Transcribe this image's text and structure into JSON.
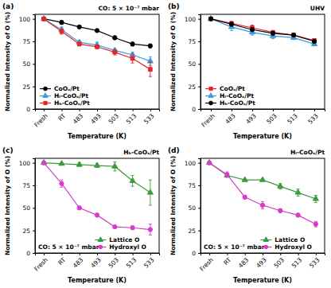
{
  "chart_data": [
    {
      "type": "line",
      "title": "(a)",
      "annotations": [
        "CO: 5 × 10⁻⁷ mbar"
      ],
      "x_label": "Temperature (K)",
      "y_label": "Normalized Intensity of O (%)",
      "categories": [
        "Fresh",
        "RT",
        "483",
        "493",
        "503",
        "513",
        "533"
      ],
      "ylim": [
        0,
        105
      ],
      "yticks": [
        0,
        25,
        50,
        75,
        100
      ],
      "legend": "lower left",
      "series": [
        {
          "name": "CoOₓ/Pt",
          "color": "#000000",
          "marker": "circle",
          "values": [
            100,
            96,
            91,
            87,
            79,
            72,
            70
          ],
          "errors": [
            0,
            2,
            1,
            1,
            2,
            2,
            2
          ]
        },
        {
          "name": "Hₗ-CoOₓ/Pt",
          "color": "#3d9ad9",
          "marker": "triangle",
          "values": [
            100,
            88,
            74,
            71,
            65,
            60,
            53
          ],
          "errors": [
            0,
            3,
            2,
            3,
            2,
            3,
            5
          ]
        },
        {
          "name": "Hₕ-CoOₓ/Pt",
          "color": "#e3262b",
          "marker": "square",
          "values": [
            100,
            86,
            72,
            69,
            63,
            56,
            44
          ],
          "errors": [
            0,
            3,
            2,
            2,
            3,
            5,
            8
          ]
        }
      ]
    },
    {
      "type": "line",
      "title": "(b)",
      "annotations": [
        "UHV"
      ],
      "x_label": "Temperature (K)",
      "y_label": "Normalized Intensity of O (%)",
      "categories": [
        "Fresh",
        "483",
        "493",
        "503",
        "513",
        "533"
      ],
      "ylim": [
        0,
        105
      ],
      "yticks": [
        0,
        25,
        50,
        75,
        100
      ],
      "legend": "lower left",
      "series": [
        {
          "name": "CoOₓ/Pt",
          "color": "#e3262b",
          "marker": "square",
          "values": [
            100,
            95,
            90,
            85,
            82,
            76
          ],
          "errors": [
            0,
            2,
            3,
            2,
            2,
            2
          ]
        },
        {
          "name": "Hₗ-CoOₓ/Pt",
          "color": "#3d9ad9",
          "marker": "triangle",
          "values": [
            100,
            91,
            85,
            81,
            79,
            72
          ],
          "errors": [
            0,
            4,
            3,
            3,
            2,
            2
          ]
        },
        {
          "name": "Hₕ-CoOₓ/Pt",
          "color": "#000000",
          "marker": "circle",
          "values": [
            100,
            94,
            88,
            84,
            82,
            75
          ],
          "errors": [
            0,
            2,
            2,
            2,
            2,
            2
          ]
        }
      ]
    },
    {
      "type": "line",
      "title": "(c)",
      "annotations": [
        "Hₕ-CoOₓ/Pt",
        "CO: 5 × 10⁻⁷ mbar"
      ],
      "x_label": "Temperature (K)",
      "y_label": "Normalized Intensity of O (%)",
      "categories": [
        "Fresh",
        "RT",
        "483",
        "493",
        "503",
        "513",
        "533"
      ],
      "ylim": [
        0,
        105
      ],
      "yticks": [
        0,
        25,
        50,
        75,
        100
      ],
      "legend": "lower right",
      "series": [
        {
          "name": "Lattice O",
          "color": "#3c9b3c",
          "marker": "triangle",
          "values": [
            100,
            99,
            98,
            97,
            96,
            80,
            67
          ],
          "errors": [
            0,
            1,
            2,
            2,
            5,
            6,
            14
          ]
        },
        {
          "name": "Hydroxyl O",
          "color": "#d63cc8",
          "marker": "circle",
          "values": [
            100,
            77,
            50,
            42,
            29,
            28,
            26
          ],
          "errors": [
            0,
            4,
            2,
            2,
            1,
            2,
            6
          ]
        }
      ]
    },
    {
      "type": "line",
      "title": "(d)",
      "annotations": [
        "Hₗ-CoOₓ/Pt",
        "CO: 5 × 10⁻⁷ mbar"
      ],
      "x_label": "Temperature (K)",
      "y_label": "Normalized Intensity of O (%)",
      "categories": [
        "Fresh",
        "RT",
        "483",
        "493",
        "503",
        "513",
        "533"
      ],
      "ylim": [
        0,
        105
      ],
      "yticks": [
        0,
        25,
        50,
        75,
        100
      ],
      "legend": "lower right",
      "series": [
        {
          "name": "Lattice O",
          "color": "#3c9b3c",
          "marker": "triangle",
          "values": [
            100,
            86,
            81,
            81,
            74,
            67,
            60
          ],
          "errors": [
            0,
            2,
            1,
            1,
            3,
            4,
            4
          ]
        },
        {
          "name": "Hydroxyl O",
          "color": "#d63cc8",
          "marker": "circle",
          "values": [
            100,
            87,
            62,
            53,
            47,
            42,
            32
          ],
          "errors": [
            0,
            3,
            2,
            4,
            2,
            2,
            3
          ]
        }
      ]
    }
  ]
}
